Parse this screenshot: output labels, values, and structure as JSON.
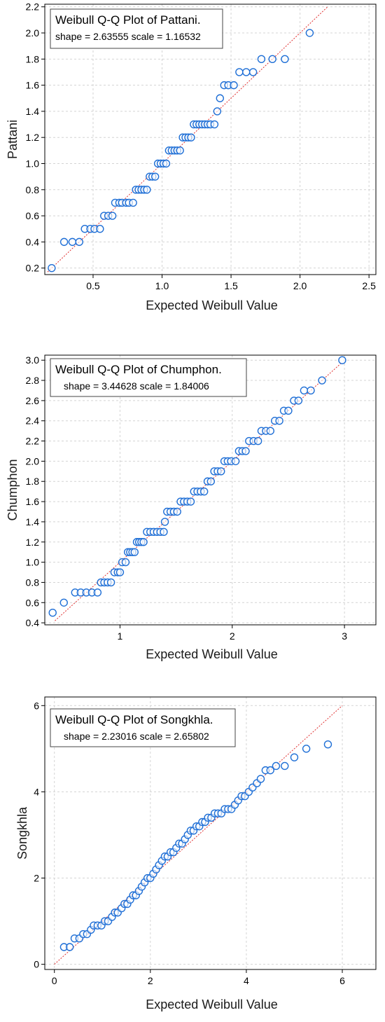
{
  "style": {
    "marker_color": "#1f6fd6",
    "ref_line_color": "#e03030",
    "grid_color": "#d4d4d4"
  },
  "chart_data": [
    {
      "type": "scatter",
      "title": "Weibull Q-Q Plot of Pattani.",
      "subtitle": "shape = 2.63555  scale = 1.16532",
      "xlabel": "Expected Weibull Value",
      "ylabel": "Pattani",
      "xlim": [
        0.15,
        2.55
      ],
      "ylim": [
        0.15,
        2.22
      ],
      "xticks": [
        "0.5",
        "1.0",
        "1.5",
        "2.0",
        "2.5"
      ],
      "yticks": [
        "0.2",
        "0.4",
        "0.6",
        "0.8",
        "1.0",
        "1.2",
        "1.4",
        "1.6",
        "1.8",
        "2.0",
        "2.2"
      ],
      "grid": true,
      "reference_line": [
        [
          0.17,
          0.17
        ],
        [
          2.2,
          2.2
        ]
      ],
      "points": [
        [
          0.2,
          0.2
        ],
        [
          0.29,
          0.4
        ],
        [
          0.35,
          0.4
        ],
        [
          0.4,
          0.4
        ],
        [
          0.44,
          0.5
        ],
        [
          0.48,
          0.5
        ],
        [
          0.51,
          0.5
        ],
        [
          0.55,
          0.5
        ],
        [
          0.58,
          0.6
        ],
        [
          0.61,
          0.6
        ],
        [
          0.64,
          0.6
        ],
        [
          0.66,
          0.7
        ],
        [
          0.69,
          0.7
        ],
        [
          0.71,
          0.7
        ],
        [
          0.74,
          0.7
        ],
        [
          0.76,
          0.7
        ],
        [
          0.79,
          0.7
        ],
        [
          0.81,
          0.8
        ],
        [
          0.83,
          0.8
        ],
        [
          0.85,
          0.8
        ],
        [
          0.87,
          0.8
        ],
        [
          0.89,
          0.8
        ],
        [
          0.91,
          0.9
        ],
        [
          0.93,
          0.9
        ],
        [
          0.95,
          0.9
        ],
        [
          0.97,
          1.0
        ],
        [
          0.99,
          1.0
        ],
        [
          1.01,
          1.0
        ],
        [
          1.03,
          1.0
        ],
        [
          1.05,
          1.1
        ],
        [
          1.07,
          1.1
        ],
        [
          1.09,
          1.1
        ],
        [
          1.11,
          1.1
        ],
        [
          1.13,
          1.1
        ],
        [
          1.15,
          1.2
        ],
        [
          1.17,
          1.2
        ],
        [
          1.19,
          1.2
        ],
        [
          1.21,
          1.2
        ],
        [
          1.23,
          1.3
        ],
        [
          1.25,
          1.3
        ],
        [
          1.27,
          1.3
        ],
        [
          1.29,
          1.3
        ],
        [
          1.31,
          1.3
        ],
        [
          1.33,
          1.3
        ],
        [
          1.35,
          1.3
        ],
        [
          1.38,
          1.3
        ],
        [
          1.4,
          1.4
        ],
        [
          1.42,
          1.5
        ],
        [
          1.45,
          1.6
        ],
        [
          1.48,
          1.6
        ],
        [
          1.52,
          1.6
        ],
        [
          1.56,
          1.7
        ],
        [
          1.61,
          1.7
        ],
        [
          1.66,
          1.7
        ],
        [
          1.72,
          1.8
        ],
        [
          1.8,
          1.8
        ],
        [
          1.89,
          1.8
        ],
        [
          2.07,
          2.0
        ]
      ]
    },
    {
      "type": "scatter",
      "title": "Weibull Q-Q Plot of Chumphon.",
      "subtitle": "shape = 3.44628  scale = 1.84006",
      "xlabel": "Expected Weibull Value",
      "ylabel": "Chumphon",
      "xlim": [
        0.33,
        3.28
      ],
      "ylim": [
        0.38,
        3.05
      ],
      "xticks": [
        "1",
        "2",
        "3"
      ],
      "yticks": [
        "0.4",
        "0.6",
        "0.8",
        "1.0",
        "1.2",
        "1.4",
        "1.6",
        "1.8",
        "2.0",
        "2.2",
        "2.4",
        "2.6",
        "2.8",
        "3.0"
      ],
      "grid": true,
      "reference_line": [
        [
          0.42,
          0.42
        ],
        [
          2.98,
          2.98
        ]
      ],
      "points": [
        [
          0.4,
          0.5
        ],
        [
          0.5,
          0.6
        ],
        [
          0.6,
          0.7
        ],
        [
          0.65,
          0.7
        ],
        [
          0.7,
          0.7
        ],
        [
          0.75,
          0.7
        ],
        [
          0.8,
          0.7
        ],
        [
          0.83,
          0.8
        ],
        [
          0.86,
          0.8
        ],
        [
          0.89,
          0.8
        ],
        [
          0.92,
          0.8
        ],
        [
          0.95,
          0.9
        ],
        [
          0.98,
          0.9
        ],
        [
          1.0,
          0.9
        ],
        [
          1.02,
          1.0
        ],
        [
          1.05,
          1.0
        ],
        [
          1.07,
          1.1
        ],
        [
          1.09,
          1.1
        ],
        [
          1.11,
          1.1
        ],
        [
          1.13,
          1.1
        ],
        [
          1.15,
          1.2
        ],
        [
          1.17,
          1.2
        ],
        [
          1.19,
          1.2
        ],
        [
          1.21,
          1.2
        ],
        [
          1.24,
          1.3
        ],
        [
          1.27,
          1.3
        ],
        [
          1.3,
          1.3
        ],
        [
          1.33,
          1.3
        ],
        [
          1.36,
          1.3
        ],
        [
          1.39,
          1.3
        ],
        [
          1.4,
          1.4
        ],
        [
          1.42,
          1.5
        ],
        [
          1.45,
          1.5
        ],
        [
          1.48,
          1.5
        ],
        [
          1.51,
          1.5
        ],
        [
          1.54,
          1.6
        ],
        [
          1.57,
          1.6
        ],
        [
          1.6,
          1.6
        ],
        [
          1.63,
          1.6
        ],
        [
          1.66,
          1.7
        ],
        [
          1.69,
          1.7
        ],
        [
          1.72,
          1.7
        ],
        [
          1.75,
          1.7
        ],
        [
          1.78,
          1.8
        ],
        [
          1.81,
          1.8
        ],
        [
          1.84,
          1.9
        ],
        [
          1.87,
          1.9
        ],
        [
          1.9,
          1.9
        ],
        [
          1.93,
          2.0
        ],
        [
          1.96,
          2.0
        ],
        [
          1.99,
          2.0
        ],
        [
          2.03,
          2.0
        ],
        [
          2.06,
          2.1
        ],
        [
          2.09,
          2.1
        ],
        [
          2.12,
          2.1
        ],
        [
          2.15,
          2.2
        ],
        [
          2.19,
          2.2
        ],
        [
          2.23,
          2.2
        ],
        [
          2.26,
          2.3
        ],
        [
          2.3,
          2.3
        ],
        [
          2.34,
          2.3
        ],
        [
          2.38,
          2.4
        ],
        [
          2.42,
          2.4
        ],
        [
          2.46,
          2.5
        ],
        [
          2.5,
          2.5
        ],
        [
          2.55,
          2.6
        ],
        [
          2.59,
          2.6
        ],
        [
          2.64,
          2.7
        ],
        [
          2.7,
          2.7
        ],
        [
          2.8,
          2.8
        ],
        [
          2.98,
          3.0
        ]
      ]
    },
    {
      "type": "scatter",
      "title": "Weibull Q-Q Plot of Songkhla.",
      "subtitle": "shape = 2.23016  scale = 2.65802",
      "xlabel": "Expected Weibull Value",
      "ylabel": "Songkhla",
      "xlim": [
        -0.2,
        6.7
      ],
      "ylim": [
        -0.12,
        6.2
      ],
      "xticks": [
        "0",
        "2",
        "4",
        "6"
      ],
      "yticks": [
        "0",
        "2",
        "4",
        "6"
      ],
      "grid": true,
      "reference_line": [
        [
          0,
          0
        ],
        [
          6,
          6
        ]
      ],
      "points": [
        [
          0.2,
          0.4
        ],
        [
          0.32,
          0.4
        ],
        [
          0.42,
          0.6
        ],
        [
          0.52,
          0.6
        ],
        [
          0.6,
          0.7
        ],
        [
          0.68,
          0.7
        ],
        [
          0.76,
          0.8
        ],
        [
          0.82,
          0.9
        ],
        [
          0.9,
          0.9
        ],
        [
          0.98,
          0.9
        ],
        [
          1.05,
          1.0
        ],
        [
          1.12,
          1.0
        ],
        [
          1.2,
          1.1
        ],
        [
          1.26,
          1.2
        ],
        [
          1.32,
          1.2
        ],
        [
          1.4,
          1.3
        ],
        [
          1.46,
          1.4
        ],
        [
          1.52,
          1.4
        ],
        [
          1.58,
          1.5
        ],
        [
          1.64,
          1.6
        ],
        [
          1.7,
          1.6
        ],
        [
          1.76,
          1.7
        ],
        [
          1.82,
          1.8
        ],
        [
          1.88,
          1.9
        ],
        [
          1.94,
          2.0
        ],
        [
          2.0,
          2.0
        ],
        [
          2.06,
          2.1
        ],
        [
          2.12,
          2.2
        ],
        [
          2.18,
          2.3
        ],
        [
          2.24,
          2.4
        ],
        [
          2.3,
          2.5
        ],
        [
          2.36,
          2.5
        ],
        [
          2.42,
          2.6
        ],
        [
          2.48,
          2.6
        ],
        [
          2.54,
          2.7
        ],
        [
          2.6,
          2.8
        ],
        [
          2.66,
          2.8
        ],
        [
          2.72,
          2.9
        ],
        [
          2.78,
          3.0
        ],
        [
          2.84,
          3.1
        ],
        [
          2.9,
          3.1
        ],
        [
          2.96,
          3.2
        ],
        [
          3.02,
          3.2
        ],
        [
          3.08,
          3.3
        ],
        [
          3.14,
          3.3
        ],
        [
          3.2,
          3.4
        ],
        [
          3.27,
          3.4
        ],
        [
          3.34,
          3.5
        ],
        [
          3.41,
          3.5
        ],
        [
          3.48,
          3.5
        ],
        [
          3.55,
          3.6
        ],
        [
          3.62,
          3.6
        ],
        [
          3.69,
          3.6
        ],
        [
          3.76,
          3.7
        ],
        [
          3.83,
          3.8
        ],
        [
          3.9,
          3.9
        ],
        [
          3.97,
          3.9
        ],
        [
          4.05,
          4.0
        ],
        [
          4.13,
          4.1
        ],
        [
          4.22,
          4.2
        ],
        [
          4.3,
          4.3
        ],
        [
          4.4,
          4.5
        ],
        [
          4.5,
          4.5
        ],
        [
          4.62,
          4.6
        ],
        [
          4.8,
          4.6
        ],
        [
          5.0,
          4.8
        ],
        [
          5.25,
          5.0
        ],
        [
          5.7,
          5.1
        ]
      ]
    }
  ]
}
